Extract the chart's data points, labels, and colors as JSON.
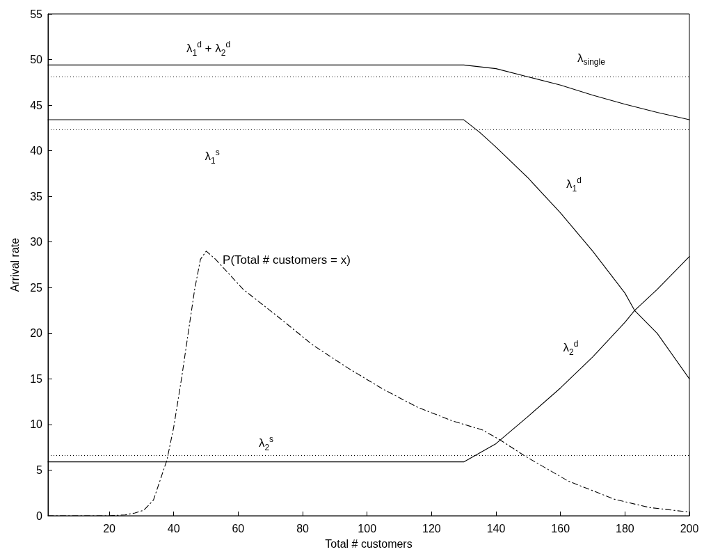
{
  "chart_data": {
    "type": "line",
    "xlabel": "Total # customers",
    "ylabel": "Arrival rate",
    "xlim": [
      1,
      200
    ],
    "xticks": [
      20,
      40,
      60,
      80,
      100,
      120,
      140,
      160,
      180,
      200
    ],
    "ylim": [
      0,
      55
    ],
    "yticks": [
      0,
      5,
      10,
      15,
      20,
      25,
      30,
      35,
      40,
      45,
      50,
      55
    ],
    "grid": false,
    "legend": false,
    "marker": "none",
    "series": [
      {
        "name": "λ$_{1}$$^{d}$ + λ$_{2}$$^{d}$",
        "color": "#000000",
        "line_style": "solid",
        "x": [
          1,
          130,
          140,
          150,
          160,
          170,
          180,
          190,
          200
        ],
        "values": [
          49.4,
          49.4,
          49.0,
          48.1,
          47.2,
          46.1,
          45.1,
          44.2,
          43.4
        ]
      },
      {
        "name": "λ$_{1}$$^{d}$",
        "color": "#000000",
        "line_style": "solid",
        "x": [
          1,
          130,
          135,
          140,
          150,
          160,
          170,
          180,
          183,
          190,
          200
        ],
        "values": [
          43.4,
          43.4,
          42.0,
          40.4,
          37.0,
          33.2,
          29.0,
          24.4,
          22.5,
          20.0,
          15.0
        ]
      },
      {
        "name": "λ$_{2}$$^{d}$",
        "color": "#000000",
        "line_style": "solid",
        "x": [
          1,
          130,
          140,
          150,
          160,
          170,
          180,
          183,
          190,
          200
        ],
        "values": [
          5.9,
          5.9,
          7.9,
          10.9,
          14.0,
          17.4,
          21.2,
          22.5,
          24.8,
          28.4
        ]
      },
      {
        "name": "P(Total # customers = x)",
        "color": "#000000",
        "line_style": "dashed",
        "x": [
          1,
          20,
          25,
          28,
          30.7,
          33.7,
          37.9,
          40,
          42.5,
          44.7,
          46.5,
          48.3,
          50.1,
          53,
          61.6,
          72.4,
          83.2,
          94,
          104.8,
          115.6,
          126.4,
          135.8,
          141.3,
          148.7,
          162.4,
          176.8,
          187.6,
          200
        ],
        "values": [
          0,
          0,
          0.1,
          0.3,
          0.6,
          1.7,
          6.1,
          9.7,
          15.2,
          20.5,
          24.8,
          28.1,
          29.0,
          28.1,
          24.8,
          21.8,
          18.7,
          16.2,
          13.9,
          11.9,
          10.4,
          9.4,
          8.3,
          6.6,
          3.8,
          1.8,
          0.9,
          0.4
        ]
      }
    ],
    "ref_lines": [
      {
        "axis": "y",
        "value": 48.1,
        "label": "λ$_{single}$",
        "color": "#000000",
        "line_style": "dotted"
      },
      {
        "axis": "y",
        "value": 42.3,
        "label": "λ$_{1}$$^{s}$",
        "color": "#000000",
        "line_style": "dotted"
      },
      {
        "axis": "y",
        "value": 6.6,
        "label": "λ$_{2}$$^{s}$",
        "color": "#000000",
        "line_style": "dotted"
      }
    ]
  }
}
